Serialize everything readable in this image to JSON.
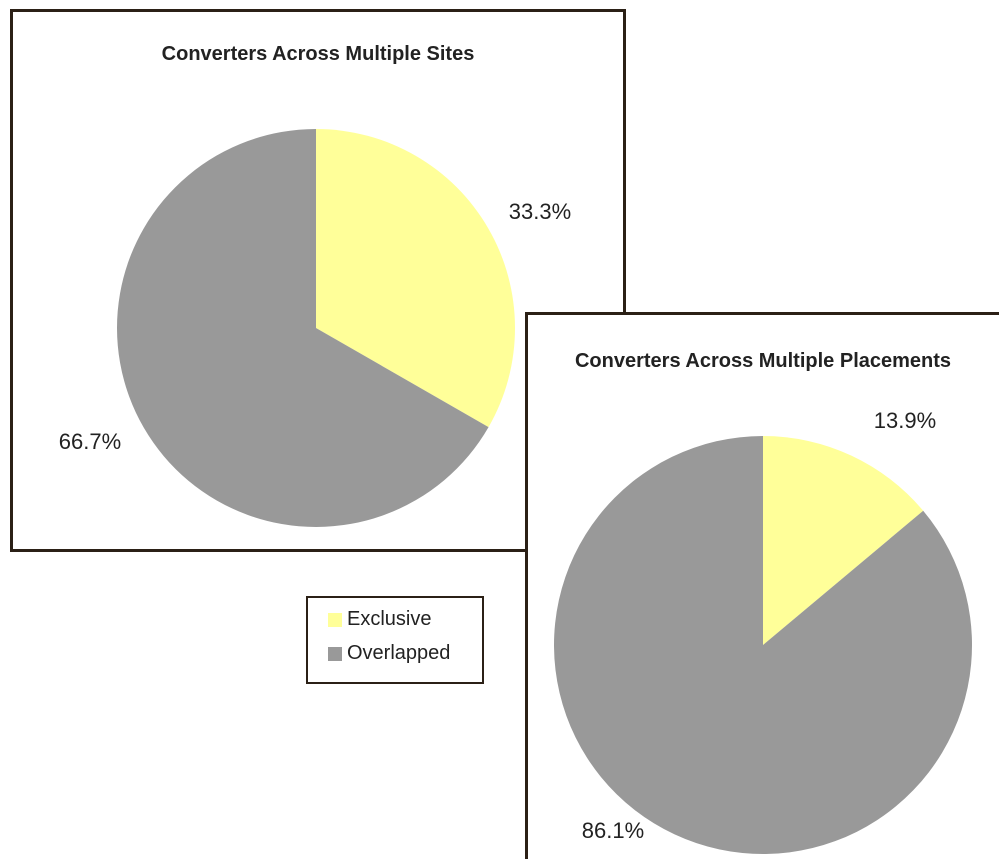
{
  "chart_data": [
    {
      "type": "pie",
      "title": "Converters Across Multiple Sites",
      "categories": [
        "Exclusive",
        "Overlapped"
      ],
      "values": [
        33.3,
        66.7
      ],
      "value_labels": [
        "33.3%",
        "66.7%"
      ],
      "colors": [
        "#ffff99",
        "#999999"
      ]
    },
    {
      "type": "pie",
      "title": "Converters Across Multiple Placements",
      "categories": [
        "Exclusive",
        "Overlapped"
      ],
      "values": [
        13.9,
        86.1
      ],
      "value_labels": [
        "13.9%",
        "86.1%"
      ],
      "colors": [
        "#ffff99",
        "#999999"
      ]
    }
  ]
}
